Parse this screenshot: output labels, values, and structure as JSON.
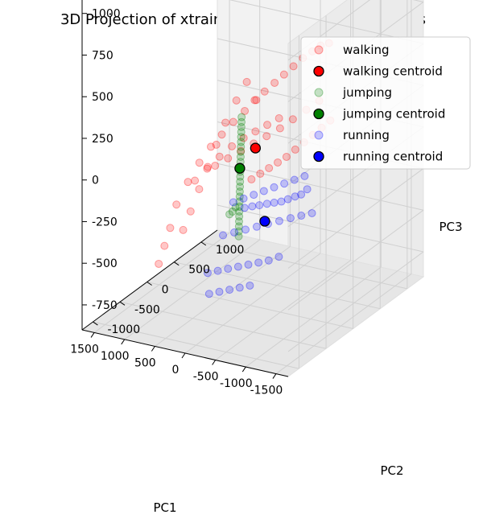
{
  "chart_data": {
    "type": "scatter",
    "projection": "3d",
    "title": "3D Projection of xtrain onto First Three PCA Modes",
    "xlabel": "PC1",
    "ylabel": "PC2",
    "zlabel": "PC3",
    "xticks": [
      -1500,
      -1000,
      -500,
      0,
      500,
      1000,
      1500
    ],
    "yticks": [
      -1000,
      -500,
      0,
      500,
      1000
    ],
    "zticks": [
      -750,
      -500,
      -250,
      0,
      250,
      500,
      750,
      1000
    ],
    "xlim": [
      -1700,
      1700
    ],
    "ylim": [
      -1200,
      1300
    ],
    "zlim": [
      -900,
      1100
    ],
    "grid": true,
    "legend_position": "top-right",
    "legend": [
      "walking",
      "walking centroid",
      "jumping",
      "jumping centroid",
      "running",
      "running centroid"
    ],
    "series": [
      {
        "name": "walking",
        "color": "#ff0000",
        "points": [
          [
            -700,
            700,
            100
          ],
          [
            -600,
            650,
            60
          ],
          [
            -500,
            600,
            20
          ],
          [
            -400,
            550,
            -20
          ],
          [
            -300,
            500,
            -60
          ],
          [
            -200,
            450,
            -100
          ],
          [
            -100,
            400,
            -130
          ],
          [
            0,
            350,
            -160
          ],
          [
            100,
            300,
            -190
          ],
          [
            200,
            250,
            -220
          ],
          [
            -650,
            550,
            250
          ],
          [
            -500,
            480,
            200
          ],
          [
            -350,
            400,
            150
          ],
          [
            -200,
            330,
            100
          ],
          [
            -50,
            250,
            60
          ],
          [
            100,
            180,
            20
          ],
          [
            250,
            110,
            -20
          ],
          [
            400,
            40,
            -60
          ],
          [
            550,
            -30,
            -100
          ],
          [
            -500,
            900,
            500
          ],
          [
            -380,
            880,
            480
          ],
          [
            -260,
            860,
            440
          ],
          [
            -140,
            820,
            400
          ],
          [
            -20,
            780,
            350
          ],
          [
            100,
            740,
            300
          ],
          [
            220,
            700,
            250
          ],
          [
            340,
            650,
            200
          ],
          [
            460,
            600,
            150
          ],
          [
            300,
            450,
            200
          ],
          [
            400,
            350,
            150
          ],
          [
            500,
            250,
            100
          ],
          [
            600,
            150,
            40
          ],
          [
            700,
            60,
            -20
          ],
          [
            800,
            -40,
            -100
          ],
          [
            900,
            -140,
            -200
          ],
          [
            1000,
            -240,
            -320
          ],
          [
            1050,
            -300,
            -450
          ],
          [
            1100,
            -350,
            -550
          ],
          [
            1150,
            -400,
            -650
          ],
          [
            500,
            500,
            280
          ],
          [
            600,
            420,
            180
          ],
          [
            700,
            330,
            60
          ],
          [
            780,
            250,
            -60
          ],
          [
            850,
            170,
            -180
          ],
          [
            920,
            90,
            -300
          ],
          [
            990,
            10,
            -420
          ],
          [
            1050,
            -60,
            -520
          ],
          [
            -300,
            200,
            200
          ],
          [
            -150,
            150,
            160
          ],
          [
            0,
            100,
            120
          ],
          [
            150,
            50,
            80
          ],
          [
            300,
            0,
            30
          ],
          [
            450,
            -60,
            -30
          ],
          [
            600,
            -120,
            -100
          ],
          [
            750,
            -180,
            -170
          ]
        ]
      },
      {
        "name": "walking centroid",
        "color": "#ff0000",
        "points": [
          [
            0,
            100,
            20
          ]
        ]
      },
      {
        "name": "jumping",
        "color": "#008000",
        "points": [
          [
            50,
            -100,
            250
          ],
          [
            52,
            -100,
            220
          ],
          [
            54,
            -100,
            190
          ],
          [
            56,
            -100,
            160
          ],
          [
            58,
            -100,
            130
          ],
          [
            60,
            -100,
            100
          ],
          [
            62,
            -100,
            70
          ],
          [
            64,
            -100,
            40
          ],
          [
            66,
            -100,
            10
          ],
          [
            68,
            -100,
            -20
          ],
          [
            70,
            -100,
            -50
          ],
          [
            72,
            -100,
            -80
          ],
          [
            74,
            -100,
            -110
          ],
          [
            76,
            -100,
            -140
          ],
          [
            78,
            -100,
            -170
          ],
          [
            80,
            -100,
            -200
          ],
          [
            82,
            -100,
            -230
          ],
          [
            84,
            -100,
            -260
          ],
          [
            86,
            -100,
            -290
          ],
          [
            88,
            -100,
            -320
          ],
          [
            90,
            -100,
            -350
          ],
          [
            92,
            -100,
            -380
          ],
          [
            94,
            -100,
            -410
          ],
          [
            96,
            -100,
            -440
          ],
          [
            98,
            -100,
            -470
          ],
          [
            150,
            -100,
            -300
          ],
          [
            200,
            -100,
            -330
          ],
          [
            250,
            -100,
            -350
          ]
        ]
      },
      {
        "name": "jumping centroid",
        "color": "#008000",
        "points": [
          [
            80,
            -100,
            -60
          ]
        ]
      },
      {
        "name": "running",
        "color": "#0000ff",
        "points": [
          [
            -1300,
            -400,
            0
          ],
          [
            -1200,
            -400,
            -40
          ],
          [
            -1100,
            -400,
            -60
          ],
          [
            -1000,
            -420,
            -80
          ],
          [
            -900,
            -430,
            -100
          ],
          [
            -800,
            -450,
            -110
          ],
          [
            -700,
            -470,
            -120
          ],
          [
            -600,
            -500,
            -130
          ],
          [
            -500,
            -520,
            -140
          ],
          [
            -400,
            -550,
            -150
          ],
          [
            -1200,
            -200,
            -200
          ],
          [
            -1050,
            -230,
            -220
          ],
          [
            -900,
            -260,
            -240
          ],
          [
            -750,
            -300,
            -260
          ],
          [
            -600,
            -340,
            -280
          ],
          [
            -450,
            -380,
            -300
          ],
          [
            -300,
            -420,
            -320
          ],
          [
            -150,
            -460,
            -340
          ],
          [
            0,
            -500,
            -360
          ],
          [
            -1100,
            -700,
            -350
          ],
          [
            -950,
            -720,
            -380
          ],
          [
            -800,
            -740,
            -400
          ],
          [
            -650,
            -760,
            -420
          ],
          [
            -500,
            -780,
            -440
          ],
          [
            -350,
            -800,
            -460
          ],
          [
            -200,
            -820,
            -480
          ],
          [
            -50,
            -840,
            -500
          ],
          [
            -900,
            0,
            -50
          ],
          [
            -750,
            -20,
            -80
          ],
          [
            -600,
            -40,
            -110
          ],
          [
            -450,
            -60,
            -140
          ],
          [
            -300,
            -80,
            -170
          ],
          [
            -150,
            -100,
            -200
          ],
          [
            0,
            -120,
            -230
          ],
          [
            150,
            -140,
            -260
          ],
          [
            -800,
            -900,
            -500
          ],
          [
            -650,
            -920,
            -520
          ],
          [
            -500,
            -940,
            -540
          ],
          [
            -350,
            -960,
            -560
          ],
          [
            -200,
            -980,
            -580
          ]
        ]
      },
      {
        "name": "running centroid",
        "color": "#0000ff",
        "points": [
          [
            -600,
            -400,
            -250
          ]
        ]
      }
    ]
  }
}
